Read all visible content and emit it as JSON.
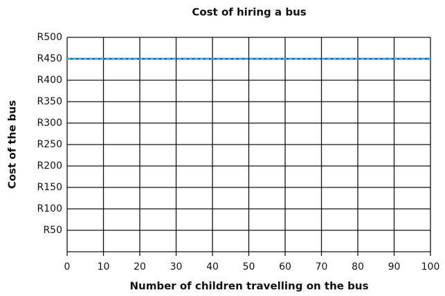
{
  "chart_data": {
    "type": "line",
    "title": "Cost of hiring a bus",
    "x_label": "Number of children travelling on the bus",
    "y_label": "Cost of the bus",
    "x": [
      0,
      100
    ],
    "series": [
      {
        "color": "#1ab0e8",
        "values": [
          450,
          450
        ]
      }
    ],
    "xlim": [
      0,
      100
    ],
    "xticks": [
      0,
      10,
      20,
      30,
      40,
      50,
      60,
      70,
      80,
      90,
      100
    ],
    "ylim": [
      0,
      500
    ],
    "yticks": [
      {
        "value": 50,
        "label": "R50"
      },
      {
        "value": 100,
        "label": "R100"
      },
      {
        "value": 150,
        "label": "R150"
      },
      {
        "value": 200,
        "label": "R200"
      },
      {
        "value": 250,
        "label": "R250"
      },
      {
        "value": 300,
        "label": "R300"
      },
      {
        "value": 350,
        "label": "R350"
      },
      {
        "value": 400,
        "label": "R400"
      },
      {
        "value": 450,
        "label": "R450"
      },
      {
        "value": 500,
        "label": "R500"
      }
    ],
    "grid": true
  }
}
